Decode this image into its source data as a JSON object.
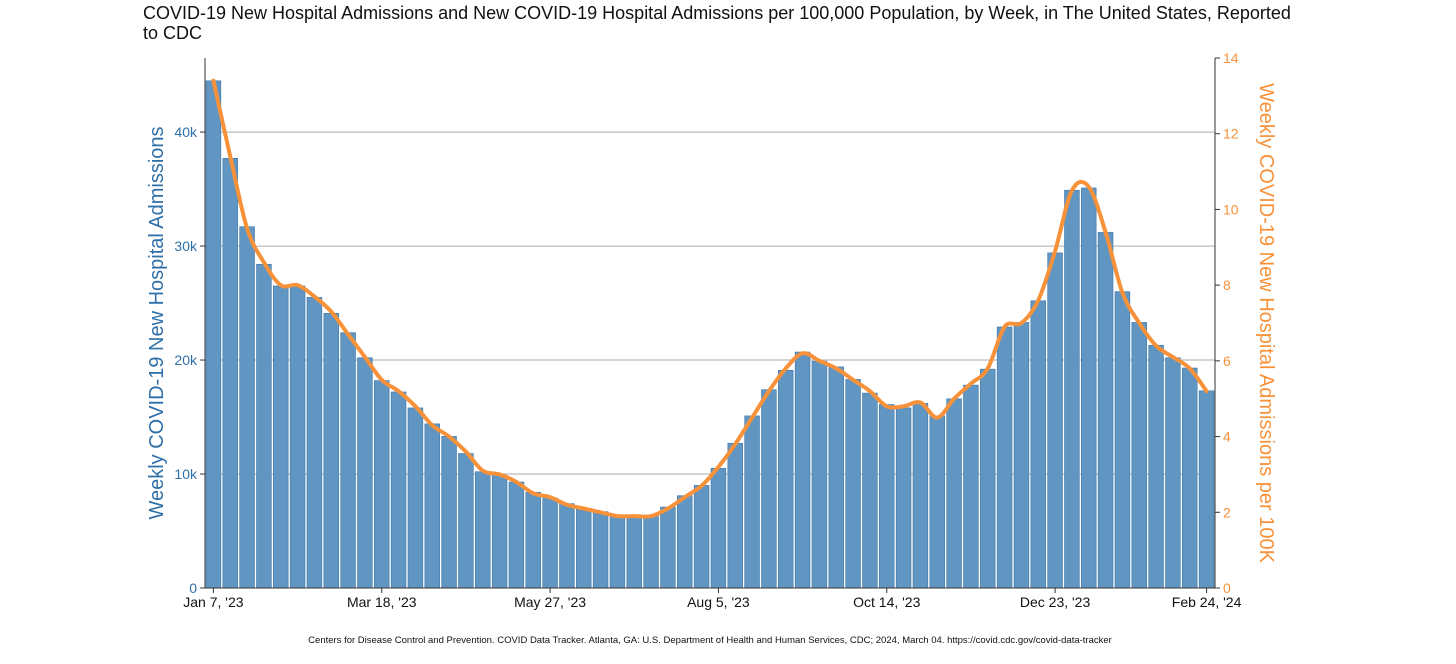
{
  "chart_data": {
    "type": "bar",
    "title": "COVID-19 New Hospital Admissions and New COVID-19 Hospital Admissions per 100,000 Population, by Week, in The United States, Reported to CDC",
    "ylabel": "Weekly COVID-19 New Hospital Admissions",
    "y2label": "Weekly COVID-19 New Hospital Admissions per 100K",
    "xlabel": "",
    "x_tick_labels": [
      "Jan 7, '23",
      "Mar 18, '23",
      "May 27, '23",
      "Aug 5, '23",
      "Oct 14, '23",
      "Dec 23, '23",
      "Feb 24, '24"
    ],
    "x_tick_week_index": [
      0,
      10,
      20,
      30,
      40,
      50,
      59
    ],
    "ylim": [
      0,
      46500
    ],
    "y_ticks": [
      0,
      10000,
      20000,
      30000,
      40000
    ],
    "y_tick_labels": [
      "0",
      "10k",
      "20k",
      "30k",
      "40k"
    ],
    "y2lim": [
      0,
      14
    ],
    "y2_ticks": [
      0,
      2,
      4,
      6,
      8,
      10,
      12,
      14
    ],
    "y2_tick_labels": [
      "0",
      "2",
      "4",
      "6",
      "8",
      "10",
      "12",
      "14"
    ],
    "grid": true,
    "series": [
      {
        "name": "Weekly COVID-19 New Hospital Admissions",
        "type": "bar",
        "axis": "left",
        "values": [
          44500,
          37700,
          31700,
          28400,
          26500,
          26500,
          25500,
          24100,
          22400,
          20200,
          18200,
          17200,
          15800,
          14400,
          13300,
          11800,
          10200,
          9900,
          9300,
          8400,
          7900,
          7400,
          7000,
          6700,
          6400,
          6400,
          6400,
          7100,
          8100,
          9000,
          10500,
          12700,
          15100,
          17400,
          19100,
          20700,
          19900,
          19400,
          18300,
          17100,
          16100,
          15800,
          16200,
          15100,
          16600,
          17800,
          19200,
          22900,
          23300,
          25200,
          29400,
          34900,
          35100,
          31200,
          26000,
          23300,
          21300,
          20200,
          19300,
          17300
        ]
      },
      {
        "name": "Weekly COVID-19 New Hospital Admissions per 100K",
        "type": "line",
        "axis": "right",
        "values": [
          13.4,
          11.4,
          9.5,
          8.6,
          8.0,
          8.0,
          7.7,
          7.3,
          6.7,
          6.1,
          5.5,
          5.2,
          4.8,
          4.3,
          4.0,
          3.6,
          3.1,
          3.0,
          2.8,
          2.5,
          2.4,
          2.2,
          2.1,
          2.0,
          1.9,
          1.9,
          1.9,
          2.1,
          2.4,
          2.7,
          3.2,
          3.8,
          4.5,
          5.2,
          5.8,
          6.2,
          6.0,
          5.8,
          5.5,
          5.2,
          4.8,
          4.8,
          4.9,
          4.5,
          5.0,
          5.4,
          5.8,
          6.9,
          7.0,
          7.6,
          8.9,
          10.5,
          10.6,
          9.4,
          7.8,
          7.0,
          6.4,
          6.1,
          5.8,
          5.2
        ]
      }
    ],
    "colors": {
      "bar": "#6195c2",
      "bar_edge": "#3f78ad",
      "line": "#f7923a",
      "left_axis": "#2f6fa8",
      "right_axis": "#f7923a"
    },
    "source": "Centers for Disease Control and Prevention. COVID Data Tracker. Atlanta, GA: U.S. Department of Health and Human Services, CDC; 2024, March 04. https://covid.cdc.gov/covid-data-tracker"
  }
}
